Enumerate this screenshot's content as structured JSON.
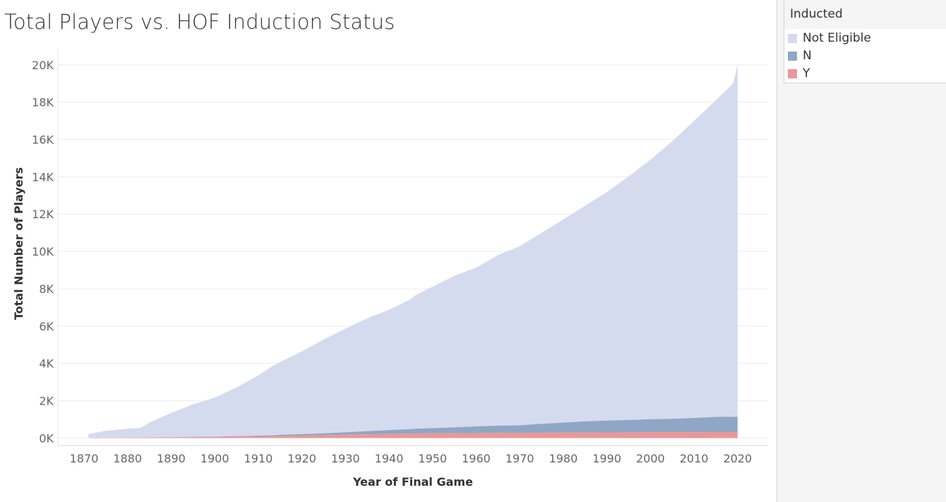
{
  "chart_data": {
    "type": "area",
    "stacked": true,
    "title": "Total Players vs. HOF Induction Status",
    "xlabel": "Year of Final Game",
    "ylabel": "Total Number of Players",
    "xlim": [
      1864,
      2027
    ],
    "ylim": [
      -400,
      20900
    ],
    "x_ticks": [
      1870,
      1880,
      1890,
      1900,
      1910,
      1920,
      1930,
      1940,
      1950,
      1960,
      1970,
      1980,
      1990,
      2000,
      2010,
      2020
    ],
    "x_tick_labels": [
      "1870",
      "1880",
      "1890",
      "1900",
      "1910",
      "1920",
      "1930",
      "1940",
      "1950",
      "1960",
      "1970",
      "1980",
      "1990",
      "2000",
      "2010",
      "2020"
    ],
    "y_ticks": [
      0,
      2000,
      4000,
      6000,
      8000,
      10000,
      12000,
      14000,
      16000,
      18000,
      20000
    ],
    "y_tick_labels": [
      "0K",
      "2K",
      "4K",
      "6K",
      "8K",
      "10K",
      "12K",
      "14K",
      "16K",
      "18K",
      "20K"
    ],
    "grid": true,
    "legend_position": "right",
    "legend_title": "Inducted",
    "colors": {
      "Not Eligible": "#d5dbee",
      "N": "#8fa7c4",
      "Y": "#eb9797"
    },
    "x": [
      1871,
      1875,
      1880,
      1883,
      1885,
      1890,
      1895,
      1900,
      1905,
      1910,
      1913,
      1915,
      1920,
      1925,
      1930,
      1935,
      1940,
      1945,
      1946,
      1950,
      1955,
      1960,
      1965,
      1970,
      1975,
      1980,
      1985,
      1990,
      1995,
      2000,
      2005,
      2010,
      2015,
      2019,
      2020
    ],
    "series": [
      {
        "name": "Y",
        "values": [
          10,
          15,
          20,
          25,
          30,
          40,
          50,
          60,
          75,
          90,
          100,
          110,
          130,
          150,
          180,
          200,
          220,
          240,
          245,
          250,
          255,
          265,
          275,
          280,
          285,
          290,
          295,
          300,
          305,
          310,
          312,
          315,
          317,
          318,
          318
        ]
      },
      {
        "name": "N",
        "values": [
          0,
          0,
          0,
          0,
          0,
          5,
          10,
          20,
          30,
          40,
          50,
          60,
          80,
          100,
          130,
          170,
          210,
          240,
          250,
          280,
          320,
          360,
          390,
          400,
          480,
          540,
          600,
          640,
          660,
          700,
          720,
          760,
          820,
          820,
          820
        ]
      },
      {
        "name": "Not Eligible",
        "values": [
          200,
          380,
          480,
          520,
          800,
          1300,
          1740,
          2090,
          2610,
          3230,
          3670,
          3900,
          4430,
          5030,
          5550,
          6050,
          6440,
          6960,
          7150,
          7580,
          8125,
          8505,
          9135,
          9600,
          10235,
          10880,
          11555,
          12240,
          13055,
          13910,
          14868,
          15915,
          16963,
          17862,
          18862
        ]
      }
    ]
  }
}
